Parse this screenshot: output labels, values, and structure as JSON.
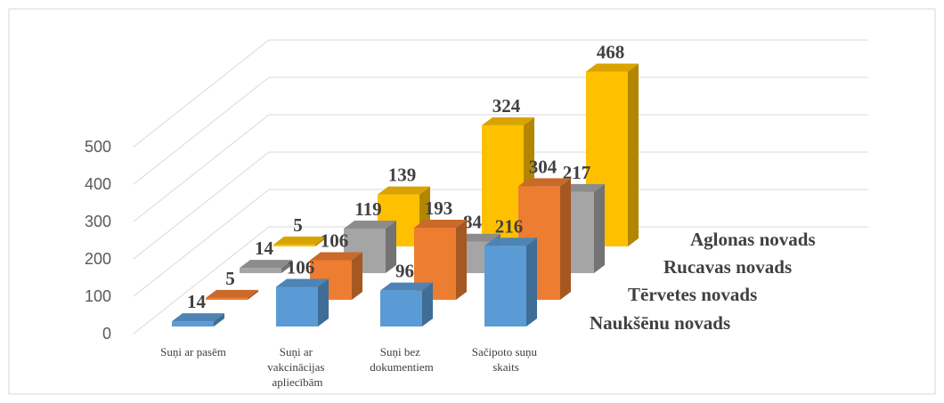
{
  "chart_data": {
    "type": "bar3d",
    "categories": [
      "Suņi ar pasēm",
      "Suņi ar vakcinācijas apliecībām",
      "Suņi bez dokumentiem",
      "Sačipoto suņu skaits"
    ],
    "series": [
      {
        "name": "Naukšēnu novads",
        "color": "#5b9bd5",
        "values": [
          14,
          106,
          96,
          216
        ]
      },
      {
        "name": "Tērvetes novads",
        "color": "#ed7d31",
        "values": [
          5,
          106,
          193,
          304
        ]
      },
      {
        "name": "Rucavas novads",
        "color": "#a5a5a5",
        "values": [
          14,
          119,
          84,
          217
        ]
      },
      {
        "name": "Aglonas novads",
        "color": "#ffc000",
        "values": [
          5,
          139,
          324,
          468
        ]
      }
    ],
    "ylim": [
      0,
      500
    ],
    "yticks": [
      0,
      100,
      200,
      300,
      400,
      500
    ],
    "grid": true
  }
}
